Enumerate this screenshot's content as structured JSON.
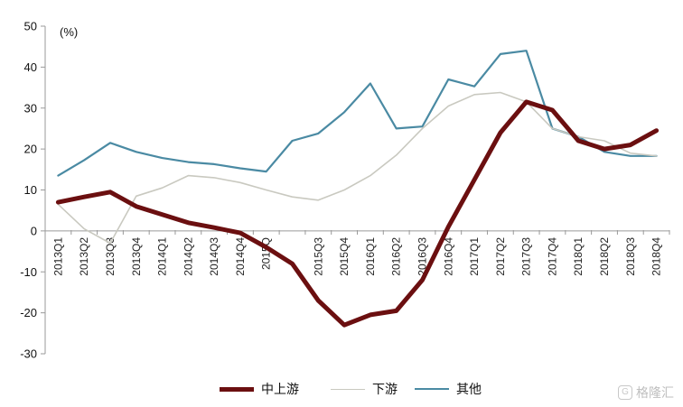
{
  "chart_data": {
    "type": "line",
    "unit_label": "(%)",
    "categories": [
      "2013Q1",
      "2013Q2",
      "2013Q3",
      "2013Q4",
      "2014Q1",
      "2014Q2",
      "2014Q3",
      "2014Q4",
      "2015Q1",
      "2015Q2",
      "2015Q3",
      "2015Q4",
      "2016Q1",
      "2016Q2",
      "2016Q3",
      "2016Q4",
      "2017Q1",
      "2017Q2",
      "2017Q3",
      "2017Q4",
      "2018Q1",
      "2018Q2",
      "2018Q3",
      "2018Q4"
    ],
    "x_tick_labels": [
      "2013Q1",
      "2013Q2",
      "2013Q3",
      "2013Q4",
      "2014Q1",
      "2014Q2",
      "2014Q3",
      "2014Q4",
      "2015Q",
      "",
      "2015Q3",
      "2015Q4",
      "2016Q1",
      "2016Q2",
      "2016Q3",
      "2016Q4",
      "2017Q1",
      "2017Q2",
      "2017Q3",
      "2017Q4",
      "2018Q1",
      "2018Q2",
      "2018Q3",
      "2018Q4"
    ],
    "ylim": [
      -30,
      50
    ],
    "yticks": [
      -30,
      -20,
      -10,
      0,
      10,
      20,
      30,
      40,
      50
    ],
    "grid": false,
    "legend_position": "bottom",
    "series": [
      {
        "name": "中上游",
        "color": "#6b0f10",
        "width": "thick",
        "values": [
          7,
          8.3,
          9.5,
          6,
          4,
          2,
          0.8,
          -0.5,
          -4,
          -8,
          -17,
          -23,
          -20.5,
          -19.5,
          -12,
          1,
          12.5,
          24,
          31.5,
          29.5,
          22,
          20,
          21,
          24.5
        ]
      },
      {
        "name": "下游",
        "color": "#c9c9c0",
        "width": "thin",
        "values": [
          6.5,
          0.5,
          -3,
          8.5,
          10.5,
          13.5,
          13,
          11.8,
          10,
          8.3,
          7.5,
          10,
          13.5,
          18.5,
          25,
          30.5,
          33.3,
          33.8,
          31.5,
          25,
          23,
          22,
          19,
          18.3
        ]
      },
      {
        "name": "其他",
        "color": "#4a8aa3",
        "width": "medium",
        "values": [
          13.5,
          17.3,
          21.5,
          19.3,
          17.8,
          16.8,
          16.3,
          15.3,
          14.5,
          22,
          23.8,
          29,
          36,
          25,
          25.5,
          37,
          35.3,
          43.2,
          44,
          25,
          23,
          19.3,
          18.3,
          18.3
        ]
      }
    ]
  },
  "legend": {
    "items": [
      "中上游",
      "下游",
      "其他"
    ]
  },
  "watermark": {
    "text": "格隆汇"
  }
}
